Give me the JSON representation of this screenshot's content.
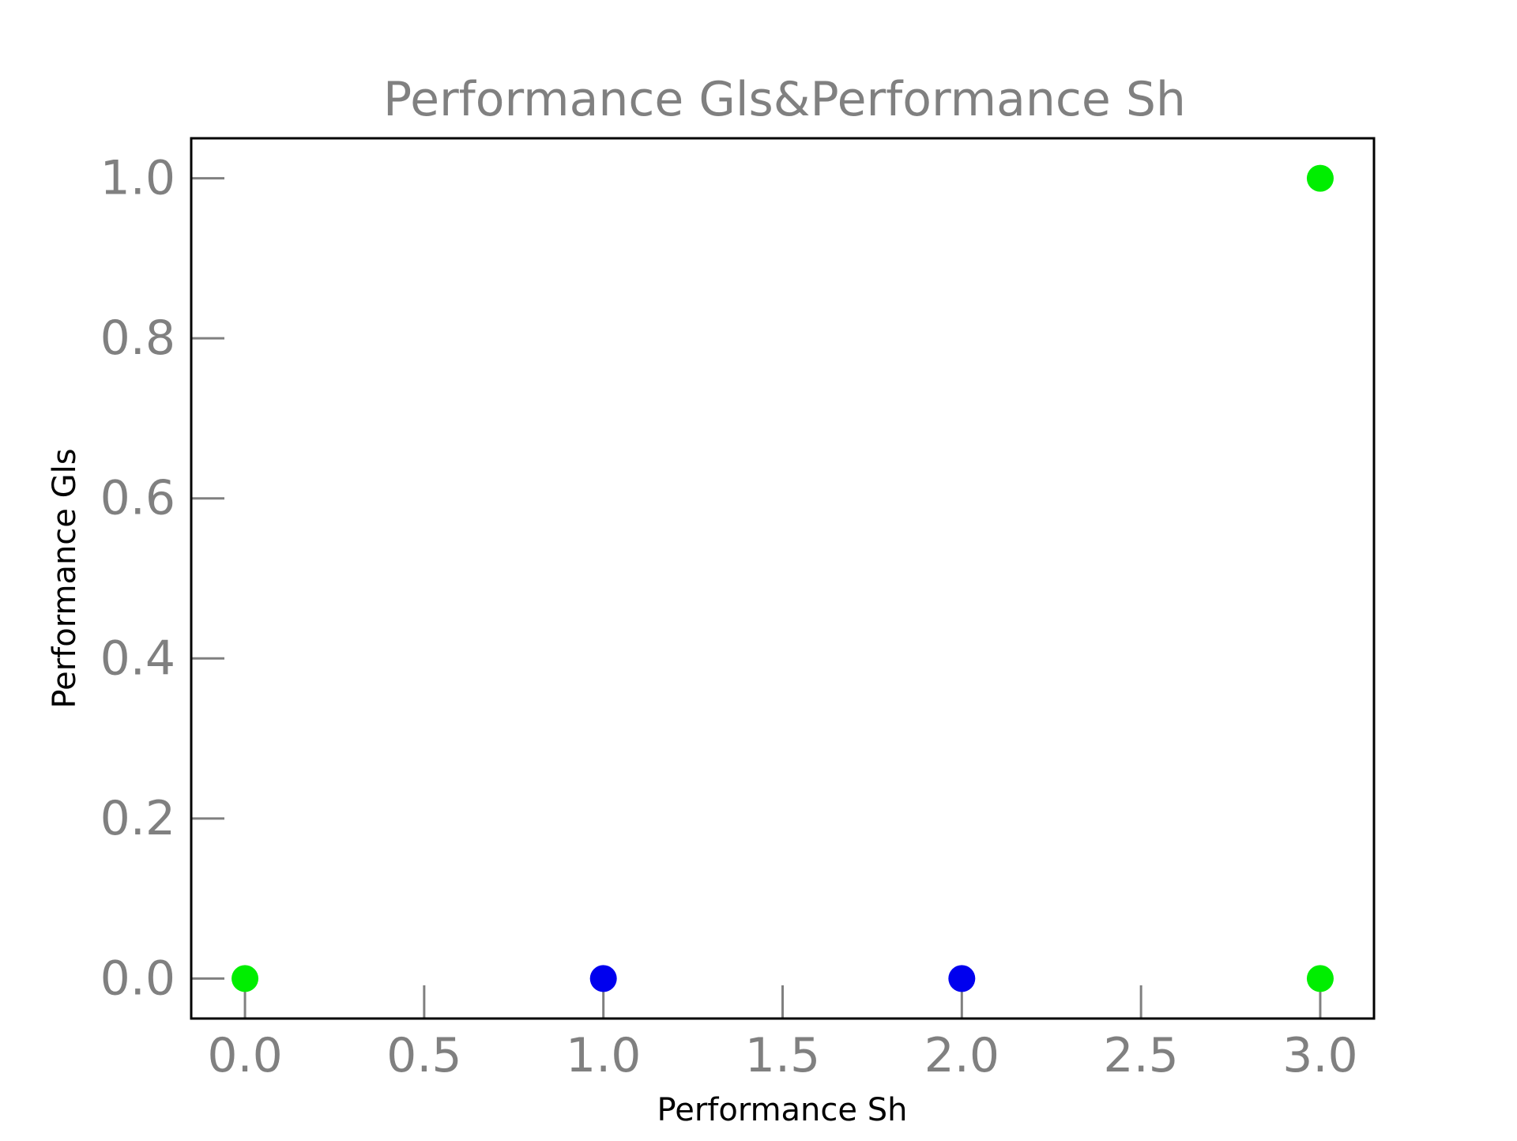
{
  "chart_data": {
    "type": "scatter",
    "title": "Performance Gls&Performance Sh",
    "xlabel": "Performance Sh",
    "ylabel": "Performance Gls",
    "xlim": [
      -0.15,
      3.15
    ],
    "ylim": [
      -0.05,
      1.05
    ],
    "x_ticks": [
      0.0,
      0.5,
      1.0,
      1.5,
      2.0,
      2.5,
      3.0
    ],
    "x_tick_labels": [
      "0.0",
      "0.5",
      "1.0",
      "1.5",
      "2.0",
      "2.5",
      "3.0"
    ],
    "y_ticks": [
      0.0,
      0.2,
      0.4,
      0.6,
      0.8,
      1.0
    ],
    "y_tick_labels": [
      "0.0",
      "0.2",
      "0.4",
      "0.6",
      "0.8",
      "1.0"
    ],
    "grid": false,
    "legend": "none",
    "points": [
      {
        "x": 0,
        "y": 0,
        "color": "#00ee00"
      },
      {
        "x": 1,
        "y": 0,
        "color": "#0000ee"
      },
      {
        "x": 2,
        "y": 0,
        "color": "#0000ee"
      },
      {
        "x": 3,
        "y": 0,
        "color": "#00ee00"
      },
      {
        "x": 3,
        "y": 1,
        "color": "#00ee00"
      }
    ],
    "colors": {
      "tick_text": "#808080",
      "title_text": "#808080",
      "label_text": "#000000",
      "axes": "#000000"
    }
  }
}
